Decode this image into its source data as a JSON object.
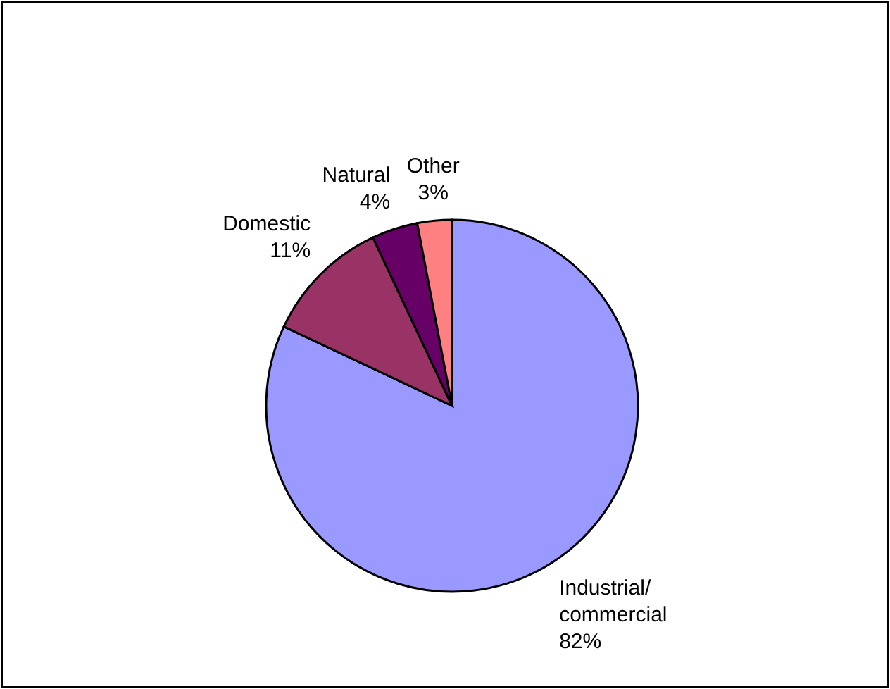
{
  "chart_data": {
    "type": "pie",
    "categories": [
      "Industrial/commercial",
      "Domestic",
      "Natural",
      "Other"
    ],
    "values": [
      82,
      11,
      4,
      3
    ],
    "colors": [
      "#9999ff",
      "#993366",
      "#660066",
      "#ff8080"
    ],
    "value_labels": [
      "82%",
      "11%",
      "4%",
      "3%"
    ],
    "legend": false
  }
}
